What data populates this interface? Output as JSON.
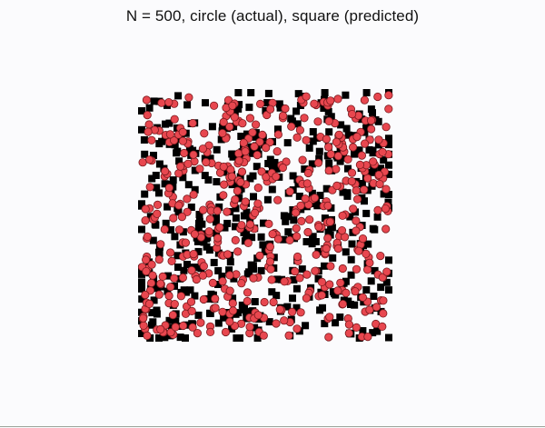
{
  "chart_data": {
    "type": "scatter",
    "title": "N = 500, circle (actual), square (predicted)",
    "n_points": 500,
    "xlim": [
      0,
      1
    ],
    "ylim": [
      0,
      1
    ],
    "grid": false,
    "legend": "none",
    "series": [
      {
        "marker": "circle",
        "color": "#e8474f",
        "edge_color": "#7a1a1e"
      },
      {
        "marker": "square",
        "color": "#000000"
      }
    ],
    "sampling": "uniform-random",
    "seed": 20240517
  }
}
